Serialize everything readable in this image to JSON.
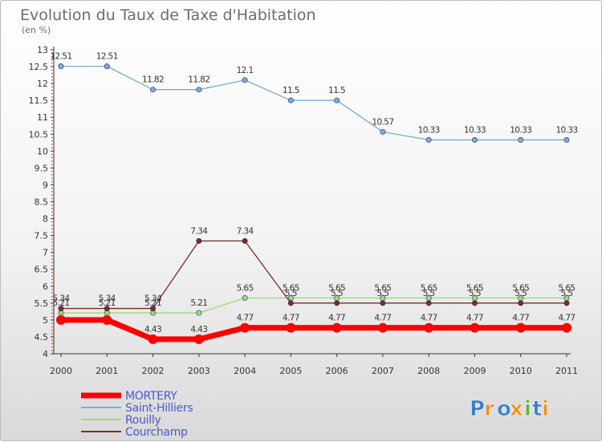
{
  "chart_data": {
    "type": "line",
    "title": "Evolution du Taux de Taxe d'Habitation",
    "subtitle": "(en %)",
    "xlabel": "",
    "ylabel": "",
    "x": [
      "2000",
      "2001",
      "2002",
      "2003",
      "2004",
      "2005",
      "2006",
      "2007",
      "2008",
      "2009",
      "2010",
      "2011"
    ],
    "ylim": [
      4,
      13
    ],
    "ystep": 0.5,
    "y_ticks": [
      "4",
      "4.5",
      "5",
      "5.5",
      "6",
      "6.5",
      "7",
      "7.5",
      "8",
      "8.5",
      "9",
      "9.5",
      "10",
      "10.5",
      "11",
      "11.5",
      "12",
      "12.5",
      "13"
    ],
    "grid": false,
    "legend_position": "bottom-left",
    "series": [
      {
        "name": "MORTERY",
        "color": "#ff0000",
        "values": [
          5,
          5,
          4.43,
          4.43,
          4.77,
          4.77,
          4.77,
          4.77,
          4.77,
          4.77,
          4.77,
          4.77
        ],
        "labels": [
          "",
          "",
          "4.43",
          "4.43",
          "4.77",
          "4.77",
          "4.77",
          "4.77",
          "4.77",
          "4.77",
          "4.77",
          "4.77"
        ]
      },
      {
        "name": "Saint-Hilliers",
        "color": "#7aaadd",
        "values": [
          12.51,
          12.51,
          11.82,
          11.82,
          12.1,
          11.5,
          11.5,
          10.57,
          10.33,
          10.33,
          10.33,
          10.33
        ],
        "labels": [
          "12.51",
          "12.51",
          "11.82",
          "11.82",
          "12.1",
          "11.5",
          "11.5",
          "10.57",
          "10.33",
          "10.33",
          "10.33",
          "10.33"
        ]
      },
      {
        "name": "Rouilly",
        "color": "#99dd77",
        "values": [
          5.21,
          5.21,
          5.21,
          5.21,
          5.65,
          5.65,
          5.65,
          5.65,
          5.65,
          5.65,
          5.65,
          5.65
        ],
        "labels": [
          "5.21",
          "5.21",
          "5.21",
          "5.21",
          "5.65",
          "5.65",
          "5.65",
          "5.65",
          "5.65",
          "5.65",
          "5.65",
          "5.65"
        ]
      },
      {
        "name": "Courchamp",
        "color": "#7a2a2a",
        "values": [
          5.34,
          5.34,
          5.34,
          7.34,
          7.34,
          5.5,
          5.5,
          5.5,
          5.5,
          5.5,
          5.5,
          5.5
        ],
        "labels": [
          "5.34",
          "5.34",
          "5.34",
          "7.34",
          "7.34",
          "5.5",
          "5.5",
          "5.5",
          "5.5",
          "5.5",
          "5.5",
          "5.5"
        ]
      }
    ]
  },
  "logo": {
    "text": "Proxiti",
    "letters": [
      "P",
      "r",
      "o",
      "x",
      "i",
      "t",
      "i"
    ],
    "colors": [
      "#3b7fd4",
      "#e8931f",
      "#3b7fd4",
      "#e8931f",
      "#5fb03c",
      "#3b7fd4",
      "#e8931f"
    ]
  }
}
